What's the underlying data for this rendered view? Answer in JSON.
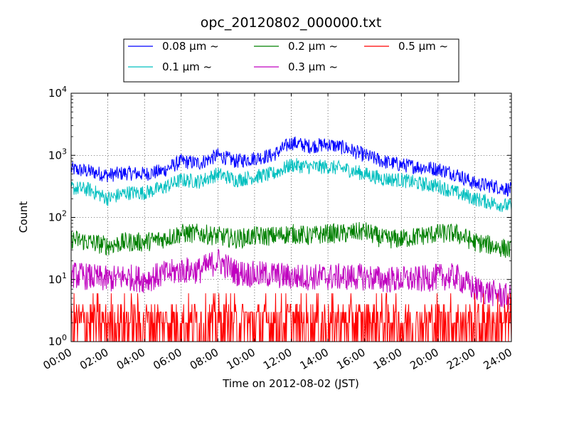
{
  "chart_data": {
    "type": "line",
    "title": "opc_20120802_000000.txt",
    "xlabel": "Time on 2012-08-02 (JST)",
    "ylabel": "Count",
    "yscale": "log",
    "ylim": [
      1,
      10000
    ],
    "xlim": [
      "2012-08-02 00:00",
      "2012-08-03 00:00"
    ],
    "grid": true,
    "legend_position": "top-center",
    "x_ticks": [
      "00:00",
      "02:00",
      "04:00",
      "06:00",
      "08:00",
      "10:00",
      "12:00",
      "14:00",
      "16:00",
      "18:00",
      "20:00",
      "22:00",
      "24:00"
    ],
    "y_ticks": [
      {
        "base": "10",
        "exp": "0"
      },
      {
        "base": "10",
        "exp": "1"
      },
      {
        "base": "10",
        "exp": "2"
      },
      {
        "base": "10",
        "exp": "3"
      },
      {
        "base": "10",
        "exp": "4"
      }
    ],
    "x": [
      "00:00",
      "01:00",
      "02:00",
      "03:00",
      "04:00",
      "05:00",
      "06:00",
      "07:00",
      "08:00",
      "09:00",
      "10:00",
      "11:00",
      "12:00",
      "13:00",
      "14:00",
      "15:00",
      "16:00",
      "17:00",
      "18:00",
      "19:00",
      "20:00",
      "21:00",
      "22:00",
      "23:00",
      "24:00"
    ],
    "series": [
      {
        "name": "0.08 μm ~",
        "color": "#0000ff",
        "values": [
          600,
          550,
          480,
          520,
          500,
          560,
          800,
          750,
          1000,
          800,
          900,
          1000,
          1600,
          1400,
          1500,
          1300,
          1000,
          800,
          700,
          650,
          600,
          500,
          350,
          320,
          280
        ]
      },
      {
        "name": "0.1 μm ~",
        "color": "#00bfbf",
        "values": [
          300,
          280,
          200,
          250,
          250,
          300,
          400,
          380,
          500,
          400,
          450,
          500,
          700,
          650,
          650,
          600,
          500,
          420,
          400,
          350,
          320,
          250,
          200,
          170,
          150
        ]
      },
      {
        "name": "0.2 μm ~",
        "color": "#008000",
        "values": [
          45,
          40,
          35,
          40,
          40,
          45,
          55,
          55,
          50,
          45,
          50,
          50,
          55,
          50,
          55,
          55,
          60,
          45,
          45,
          50,
          55,
          55,
          40,
          35,
          30
        ]
      },
      {
        "name": "0.3 μm ~",
        "color": "#bf00bf",
        "values": [
          12,
          11,
          10,
          11,
          10,
          12,
          14,
          14,
          20,
          13,
          12,
          12,
          11,
          11,
          11,
          11,
          11,
          10,
          10,
          10,
          11,
          11,
          7,
          6,
          5
        ]
      },
      {
        "name": "0.5 μm ~",
        "color": "#ff0000",
        "values": [
          3,
          3,
          3,
          3,
          3,
          3,
          3,
          3,
          3,
          3,
          3,
          3,
          3,
          3,
          3,
          3,
          3,
          3,
          3,
          3,
          3,
          3,
          2,
          2,
          2
        ]
      }
    ]
  }
}
